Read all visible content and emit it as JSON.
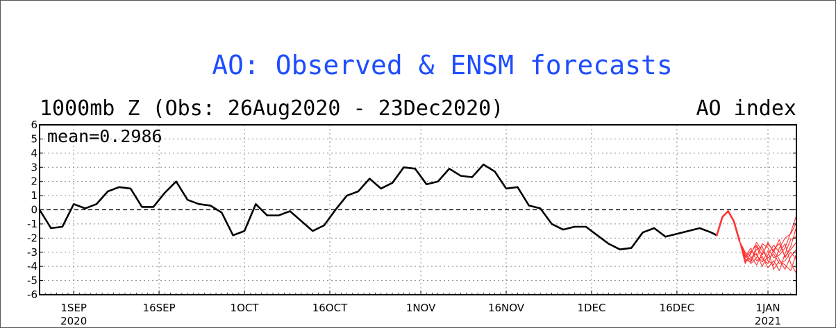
{
  "chart_data": {
    "type": "line",
    "title": "AO: Observed & ENSM forecasts",
    "subtitle_left": "1000mb Z (Obs: 26Aug2020 - 23Dec2020)",
    "subtitle_right": "AO index",
    "annotation": "mean=0.2986",
    "ylim": [
      -6,
      6
    ],
    "yticks": [
      "6",
      "5",
      "4",
      "3",
      "2",
      "1",
      "0",
      "-1",
      "-2",
      "-3",
      "-4",
      "-5",
      "-6"
    ],
    "xlim": [
      "2020-08-26",
      "2021-01-06"
    ],
    "xticks": [
      {
        "date": "2020-09-01",
        "label": "1SEP",
        "year": "2020"
      },
      {
        "date": "2020-09-16",
        "label": "16SEP",
        "year": ""
      },
      {
        "date": "2020-10-01",
        "label": "1OCT",
        "year": ""
      },
      {
        "date": "2020-10-16",
        "label": "16OCT",
        "year": ""
      },
      {
        "date": "2020-11-01",
        "label": "1NOV",
        "year": ""
      },
      {
        "date": "2020-11-16",
        "label": "16NOV",
        "year": ""
      },
      {
        "date": "2020-12-01",
        "label": "1DEC",
        "year": ""
      },
      {
        "date": "2020-12-16",
        "label": "16DEC",
        "year": ""
      },
      {
        "date": "2021-01-01",
        "label": "1JAN",
        "year": "2021"
      }
    ],
    "grid": true,
    "zero_line": "dashed",
    "colors": {
      "observed": "#000000",
      "forecast": "#ff3333",
      "title": "#1e4dff"
    },
    "series": [
      {
        "x": [
          "2020-08-26",
          "2020-08-28",
          "2020-08-30",
          "2020-09-01",
          "2020-09-03",
          "2020-09-05",
          "2020-09-07",
          "2020-09-09",
          "2020-09-11",
          "2020-09-13",
          "2020-09-15",
          "2020-09-17",
          "2020-09-19",
          "2020-09-21",
          "2020-09-23",
          "2020-09-25",
          "2020-09-27",
          "2020-09-29",
          "2020-10-01",
          "2020-10-03",
          "2020-10-05",
          "2020-10-07",
          "2020-10-09",
          "2020-10-11",
          "2020-10-13",
          "2020-10-15",
          "2020-10-17",
          "2020-10-19",
          "2020-10-21",
          "2020-10-23",
          "2020-10-25",
          "2020-10-27",
          "2020-10-29",
          "2020-10-31",
          "2020-11-02",
          "2020-11-04",
          "2020-11-06",
          "2020-11-08",
          "2020-11-10",
          "2020-11-12",
          "2020-11-14",
          "2020-11-16",
          "2020-11-18",
          "2020-11-20",
          "2020-11-22",
          "2020-11-24",
          "2020-11-26",
          "2020-11-28",
          "2020-11-30",
          "2020-12-02",
          "2020-12-04",
          "2020-12-06",
          "2020-12-08",
          "2020-12-10",
          "2020-12-12",
          "2020-12-14",
          "2020-12-16",
          "2020-12-18",
          "2020-12-20",
          "2020-12-22",
          "2020-12-23"
        ],
        "values": [
          0.0,
          -1.3,
          -1.2,
          0.4,
          0.1,
          0.4,
          1.3,
          1.6,
          1.5,
          0.2,
          0.2,
          1.2,
          2.0,
          0.7,
          0.4,
          0.3,
          -0.2,
          -1.8,
          -1.5,
          0.4,
          -0.4,
          -0.4,
          -0.1,
          -0.8,
          -1.5,
          -1.1,
          0.0,
          1.0,
          1.3,
          2.2,
          1.5,
          1.9,
          3.0,
          2.9,
          1.8,
          2.0,
          2.9,
          2.4,
          2.3,
          3.2,
          2.7,
          1.5,
          1.6,
          0.3,
          0.1,
          -1.0,
          -1.4,
          -1.2,
          -1.2,
          -1.8,
          -2.4,
          -2.8,
          -2.7,
          -1.6,
          -1.3,
          -1.9,
          -1.7,
          -1.5,
          -1.3,
          -1.6,
          -1.8
        ]
      },
      {
        "x": [
          "2020-12-23",
          "2020-12-24",
          "2020-12-25",
          "2020-12-26",
          "2020-12-27"
        ],
        "values": [
          -1.8,
          -0.5,
          -0.1,
          -0.8,
          -2.2
        ]
      },
      {
        "x": [
          "2020-12-27",
          "2020-12-28",
          "2020-12-29",
          "2020-12-30",
          "2020-12-31",
          "2021-01-01",
          "2021-01-02",
          "2021-01-03",
          "2021-01-04",
          "2021-01-05",
          "2021-01-06"
        ],
        "values": [
          -2.2,
          -3.8,
          -3.0,
          -2.5,
          -3.2,
          -2.3,
          -3.0,
          -2.1,
          -3.4,
          -2.6,
          -1.2
        ]
      },
      {
        "x": [
          "2020-12-27",
          "2020-12-28",
          "2020-12-29",
          "2020-12-30",
          "2020-12-31",
          "2021-01-01",
          "2021-01-02",
          "2021-01-03",
          "2021-01-04",
          "2021-01-05",
          "2021-01-06"
        ],
        "values": [
          -2.2,
          -3.5,
          -3.7,
          -2.8,
          -2.6,
          -3.6,
          -3.9,
          -2.7,
          -2.0,
          -1.7,
          -0.9
        ]
      },
      {
        "x": [
          "2020-12-27",
          "2020-12-28",
          "2020-12-29",
          "2020-12-30",
          "2020-12-31",
          "2021-01-01",
          "2021-01-02",
          "2021-01-03",
          "2021-01-04",
          "2021-01-05",
          "2021-01-06"
        ],
        "values": [
          -2.2,
          -3.0,
          -3.3,
          -3.9,
          -3.1,
          -2.4,
          -2.9,
          -3.5,
          -4.2,
          -3.3,
          -2.8
        ]
      },
      {
        "x": [
          "2020-12-27",
          "2020-12-28",
          "2020-12-29",
          "2020-12-30",
          "2020-12-31",
          "2021-01-01",
          "2021-01-02",
          "2021-01-03",
          "2021-01-04",
          "2021-01-05",
          "2021-01-06"
        ],
        "values": [
          -2.2,
          -3.6,
          -3.4,
          -3.1,
          -4.0,
          -3.2,
          -2.5,
          -3.0,
          -2.4,
          -3.8,
          -4.5
        ]
      },
      {
        "x": [
          "2020-12-27",
          "2020-12-28",
          "2020-12-29",
          "2020-12-30",
          "2020-12-31",
          "2021-01-01",
          "2021-01-02",
          "2021-01-03",
          "2021-01-04",
          "2021-01-05",
          "2021-01-06"
        ],
        "values": [
          -2.2,
          -3.3,
          -2.7,
          -3.6,
          -3.3,
          -4.1,
          -3.6,
          -4.3,
          -3.1,
          -2.1,
          -1.9
        ]
      },
      {
        "x": [
          "2020-12-27",
          "2020-12-28",
          "2020-12-29",
          "2020-12-30",
          "2020-12-31",
          "2021-01-01",
          "2021-01-02",
          "2021-01-03",
          "2021-01-04",
          "2021-01-05",
          "2021-01-06"
        ],
        "values": [
          -2.2,
          -3.7,
          -3.1,
          -2.3,
          -2.9,
          -3.4,
          -3.1,
          -3.8,
          -3.6,
          -3.0,
          -3.5
        ]
      },
      {
        "x": [
          "2020-12-27",
          "2020-12-28",
          "2020-12-29",
          "2020-12-30",
          "2020-12-31",
          "2021-01-01",
          "2021-01-02",
          "2021-01-03",
          "2021-01-04",
          "2021-01-05",
          "2021-01-06"
        ],
        "values": [
          -2.2,
          -3.2,
          -3.8,
          -3.4,
          -2.4,
          -2.7,
          -3.4,
          -3.2,
          -2.7,
          -1.6,
          -0.4
        ]
      },
      {
        "x": [
          "2020-12-27",
          "2020-12-28",
          "2020-12-29",
          "2020-12-30",
          "2020-12-31",
          "2021-01-01",
          "2021-01-02",
          "2021-01-03",
          "2021-01-04",
          "2021-01-05",
          "2021-01-06"
        ],
        "values": [
          -2.2,
          -3.4,
          -2.9,
          -3.2,
          -3.7,
          -2.9,
          -4.2,
          -3.6,
          -3.9,
          -4.3,
          -3.1
        ]
      },
      {
        "x": [
          "2020-12-27",
          "2020-12-28",
          "2020-12-29",
          "2020-12-30",
          "2020-12-31",
          "2021-01-01",
          "2021-01-02",
          "2021-01-03",
          "2021-01-04",
          "2021-01-05",
          "2021-01-06"
        ],
        "values": [
          -2.2,
          -3.1,
          -3.6,
          -2.6,
          -3.5,
          -3.8,
          -2.8,
          -2.4,
          -3.3,
          -2.8,
          -2.3
        ]
      }
    ]
  }
}
